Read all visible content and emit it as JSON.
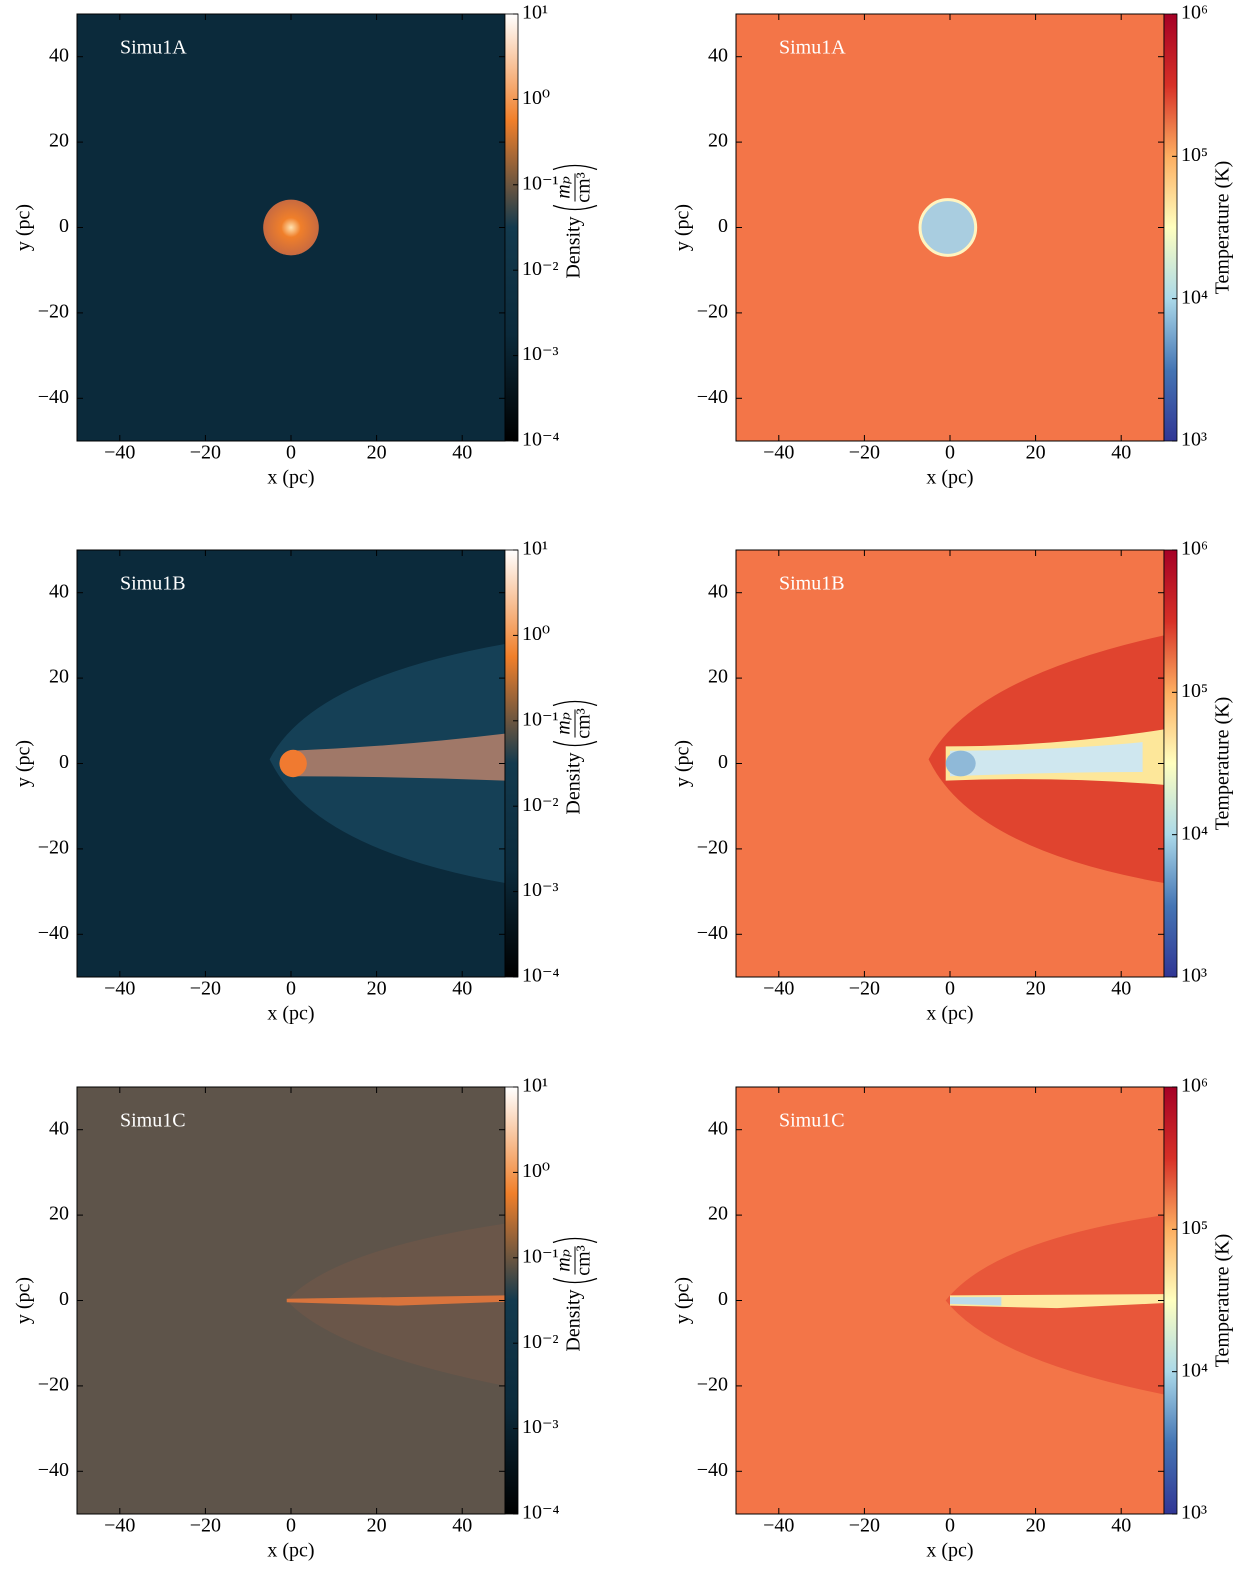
{
  "chart_data": [
    {
      "type": "heatmap",
      "panel_label": "Simu1A",
      "xlabel": "x  (pc)",
      "ylabel": "y  (pc)",
      "xlim": [
        -50,
        50
      ],
      "ylim": [
        -50,
        50
      ],
      "xticks": [
        {
          "value": -40,
          "label": "−40"
        },
        {
          "value": -20,
          "label": "−20"
        },
        0,
        20,
        40
      ],
      "yticks": [
        {
          "value": -40,
          "label": "−40"
        },
        {
          "value": -20,
          "label": "−20"
        },
        0,
        20,
        40
      ],
      "colorbar_label": "Density",
      "colorbar_unit_numerator": "mₚ",
      "colorbar_unit_denominator": "cm³",
      "clim": [
        0.0001,
        10
      ],
      "clog": true,
      "background": "#0b2a3b",
      "colormap": [
        "#000000",
        "#0b2a3b",
        "#133a4e",
        "#f07f2a",
        "#ffffff"
      ],
      "cticks": [
        {
          "value": 0.0001,
          "label": "10⁻⁴"
        },
        {
          "value": 0.001,
          "label": "10⁻³"
        },
        {
          "value": 0.01,
          "label": "10⁻²"
        },
        {
          "value": 0.1,
          "label": "10⁻¹"
        },
        {
          "value": 1,
          "label": "10⁰"
        },
        {
          "value": 10,
          "label": "10¹"
        }
      ]
    },
    {
      "type": "heatmap",
      "panel_label": "Simu1A",
      "xlabel": "x  (pc)",
      "ylabel": "y  (pc)",
      "xlim": [
        -50,
        50
      ],
      "ylim": [
        -50,
        50
      ],
      "xticks": [
        {
          "value": -40,
          "label": "−40"
        },
        {
          "value": -20,
          "label": "−20"
        },
        0,
        20,
        40
      ],
      "yticks": [
        {
          "value": -40,
          "label": "−40"
        },
        {
          "value": -20,
          "label": "−20"
        },
        0,
        20,
        40
      ],
      "colorbar_label": "Temperature  (K)",
      "clim": [
        1000,
        1000000
      ],
      "clog": true,
      "background": "#f37548",
      "colormap": [
        "#313695",
        "#4575b4",
        "#abd9e9",
        "#ffffbf",
        "#fdae61",
        "#d73027",
        "#a50026"
      ],
      "cticks": [
        {
          "value": 1000,
          "label": "10³"
        },
        {
          "value": 10000,
          "label": "10⁴"
        },
        {
          "value": 100000,
          "label": "10⁵"
        },
        {
          "value": 1000000,
          "label": "10⁶"
        }
      ]
    },
    {
      "type": "heatmap",
      "panel_label": "Simu1B",
      "xlabel": "x  (pc)",
      "ylabel": "y  (pc)",
      "xlim": [
        -50,
        50
      ],
      "ylim": [
        -50,
        50
      ],
      "xticks": [
        {
          "value": -40,
          "label": "−40"
        },
        {
          "value": -20,
          "label": "−20"
        },
        0,
        20,
        40
      ],
      "yticks": [
        {
          "value": -40,
          "label": "−40"
        },
        {
          "value": -20,
          "label": "−20"
        },
        0,
        20,
        40
      ],
      "colorbar_label": "Density",
      "colorbar_unit_numerator": "mₚ",
      "colorbar_unit_denominator": "cm³",
      "clim": [
        0.0001,
        10
      ],
      "clog": true,
      "background": "#0b2a3b",
      "colormap": [
        "#000000",
        "#0b2a3b",
        "#133a4e",
        "#f07f2a",
        "#ffffff"
      ],
      "cticks": [
        {
          "value": 0.0001,
          "label": "10⁻⁴"
        },
        {
          "value": 0.001,
          "label": "10⁻³"
        },
        {
          "value": 0.01,
          "label": "10⁻²"
        },
        {
          "value": 0.1,
          "label": "10⁻¹"
        },
        {
          "value": 1,
          "label": "10⁰"
        },
        {
          "value": 10,
          "label": "10¹"
        }
      ]
    },
    {
      "type": "heatmap",
      "panel_label": "Simu1B",
      "xlabel": "x  (pc)",
      "ylabel": "y  (pc)",
      "xlim": [
        -50,
        50
      ],
      "ylim": [
        -50,
        50
      ],
      "xticks": [
        {
          "value": -40,
          "label": "−40"
        },
        {
          "value": -20,
          "label": "−20"
        },
        0,
        20,
        40
      ],
      "yticks": [
        {
          "value": -40,
          "label": "−40"
        },
        {
          "value": -20,
          "label": "−20"
        },
        0,
        20,
        40
      ],
      "colorbar_label": "Temperature  (K)",
      "clim": [
        1000,
        1000000
      ],
      "clog": true,
      "background": "#f37548",
      "colormap": [
        "#313695",
        "#4575b4",
        "#abd9e9",
        "#ffffbf",
        "#fdae61",
        "#d73027",
        "#a50026"
      ],
      "cticks": [
        {
          "value": 1000,
          "label": "10³"
        },
        {
          "value": 10000,
          "label": "10⁴"
        },
        {
          "value": 100000,
          "label": "10⁵"
        },
        {
          "value": 1000000,
          "label": "10⁶"
        }
      ]
    },
    {
      "type": "heatmap",
      "panel_label": "Simu1C",
      "xlabel": "x  (pc)",
      "ylabel": "y  (pc)",
      "xlim": [
        -50,
        50
      ],
      "ylim": [
        -50,
        50
      ],
      "xticks": [
        {
          "value": -40,
          "label": "−40"
        },
        {
          "value": -20,
          "label": "−20"
        },
        0,
        20,
        40
      ],
      "yticks": [
        {
          "value": -40,
          "label": "−40"
        },
        {
          "value": -20,
          "label": "−20"
        },
        0,
        20,
        40
      ],
      "colorbar_label": "Density",
      "colorbar_unit_numerator": "mₚ",
      "colorbar_unit_denominator": "cm³",
      "clim": [
        0.0001,
        10
      ],
      "clog": true,
      "background": "#5e544a",
      "colormap": [
        "#000000",
        "#0b2a3b",
        "#133a4e",
        "#f07f2a",
        "#ffffff"
      ],
      "cticks": [
        {
          "value": 0.0001,
          "label": "10⁻⁴"
        },
        {
          "value": 0.001,
          "label": "10⁻³"
        },
        {
          "value": 0.01,
          "label": "10⁻²"
        },
        {
          "value": 0.1,
          "label": "10⁻¹"
        },
        {
          "value": 1,
          "label": "10⁰"
        },
        {
          "value": 10,
          "label": "10¹"
        }
      ]
    },
    {
      "type": "heatmap",
      "panel_label": "Simu1C",
      "xlabel": "x  (pc)",
      "ylabel": "y  (pc)",
      "xlim": [
        -50,
        50
      ],
      "ylim": [
        -50,
        50
      ],
      "xticks": [
        {
          "value": -40,
          "label": "−40"
        },
        {
          "value": -20,
          "label": "−20"
        },
        0,
        20,
        40
      ],
      "yticks": [
        {
          "value": -40,
          "label": "−40"
        },
        {
          "value": -20,
          "label": "−20"
        },
        0,
        20,
        40
      ],
      "colorbar_label": "Temperature  (K)",
      "clim": [
        1000,
        1000000
      ],
      "clog": true,
      "background": "#f37548",
      "colormap": [
        "#313695",
        "#4575b4",
        "#abd9e9",
        "#ffffbf",
        "#fdae61",
        "#d73027",
        "#a50026"
      ],
      "cticks": [
        {
          "value": 1000,
          "label": "10³"
        },
        {
          "value": 10000,
          "label": "10⁴"
        },
        {
          "value": 100000,
          "label": "10⁵"
        },
        {
          "value": 1000000,
          "label": "10⁶"
        }
      ]
    }
  ]
}
